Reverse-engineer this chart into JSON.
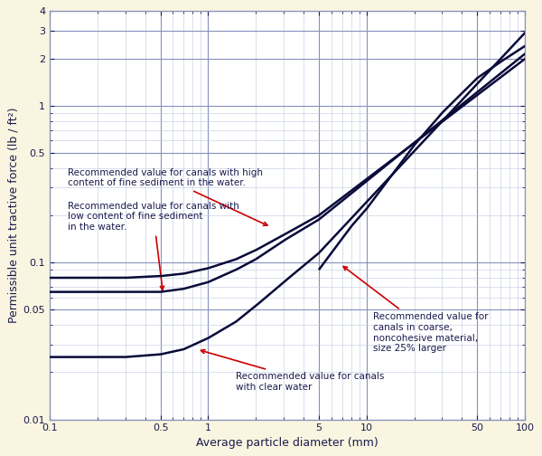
{
  "background_color": "#faf5e0",
  "plot_background": "#ffffff",
  "grid_major_color": "#8890bb",
  "grid_minor_color": "#c0c8dd",
  "curve_color": "#0a0a3a",
  "annotation_color": "#cc0000",
  "text_color": "#1a1a4e",
  "xlabel": "Average particle diameter (mm)",
  "ylabel": "Permissible unit tractive force (lb / ft²)",
  "xlim": [
    0.1,
    100
  ],
  "ylim": [
    0.01,
    4
  ],
  "x_major_ticks": [
    0.1,
    0.5,
    1,
    5,
    10,
    50,
    100
  ],
  "y_major_ticks": [
    0.01,
    0.05,
    0.1,
    0.5,
    1,
    2,
    3,
    4
  ],
  "x_major_labels": [
    "0.1",
    "0.5",
    "1",
    "5",
    "10",
    "50",
    "100"
  ],
  "y_major_labels": [
    "0.01",
    "0.05",
    "0.1",
    "0.5",
    "1",
    "2",
    "3",
    "4"
  ]
}
